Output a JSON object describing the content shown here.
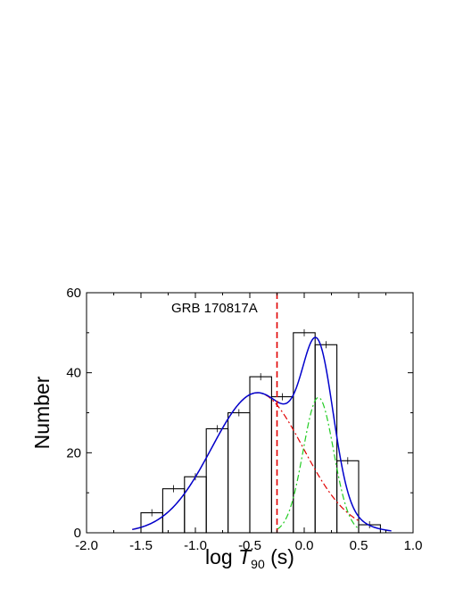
{
  "chart_data": {
    "type": "histogram",
    "xlabel": {
      "prefix": "log ",
      "symbol": "T",
      "subscript": "90",
      "unit": " (s)"
    },
    "ylabel": "Number",
    "xlim": [
      -2.0,
      1.0
    ],
    "ylim": [
      0,
      60
    ],
    "x_ticks": [
      -2.0,
      -1.5,
      -1.0,
      -0.5,
      0.0,
      0.5,
      1.0
    ],
    "x_tick_labels": [
      "-2.0",
      "-1.5",
      "-1.0",
      "-0.5",
      "0.0",
      "0.5",
      "1.0"
    ],
    "y_ticks": [
      0,
      20,
      40,
      60
    ],
    "y_tick_labels": [
      "0",
      "20",
      "40",
      "60"
    ],
    "bin_width": 0.2,
    "histogram": {
      "bin_edges": [
        -1.5,
        -1.3,
        -1.1,
        -0.9,
        -0.7,
        -0.5,
        -0.3,
        -0.1,
        0.1,
        0.3,
        0.5,
        0.7
      ],
      "counts": [
        5,
        11,
        14,
        26,
        30,
        39,
        34,
        50,
        47,
        18,
        2
      ],
      "error_bar_x": [
        -1.4,
        -1.2,
        -1.0,
        -0.8,
        -0.6,
        -0.4,
        -0.2,
        0.0,
        0.2,
        0.4,
        0.6
      ]
    },
    "fit_components": [
      {
        "mean": -0.43,
        "sigma": 0.42,
        "amplitude": 35.0,
        "color": "#e00000",
        "dash": "7,3,2,3"
      },
      {
        "mean": 0.13,
        "sigma": 0.14,
        "amplitude": 33.8,
        "color": "#22cc22",
        "dash": "7,3,2,3"
      }
    ],
    "total_fit_color": "#0000cc",
    "fit_x_range": [
      -1.58,
      0.8
    ],
    "component_clip": [
      [
        -1.58,
        0.5
      ],
      [
        -0.25,
        0.5
      ]
    ],
    "marker_line": {
      "x": -0.25,
      "color": "#e00000",
      "label": "GRB 170817A"
    }
  }
}
